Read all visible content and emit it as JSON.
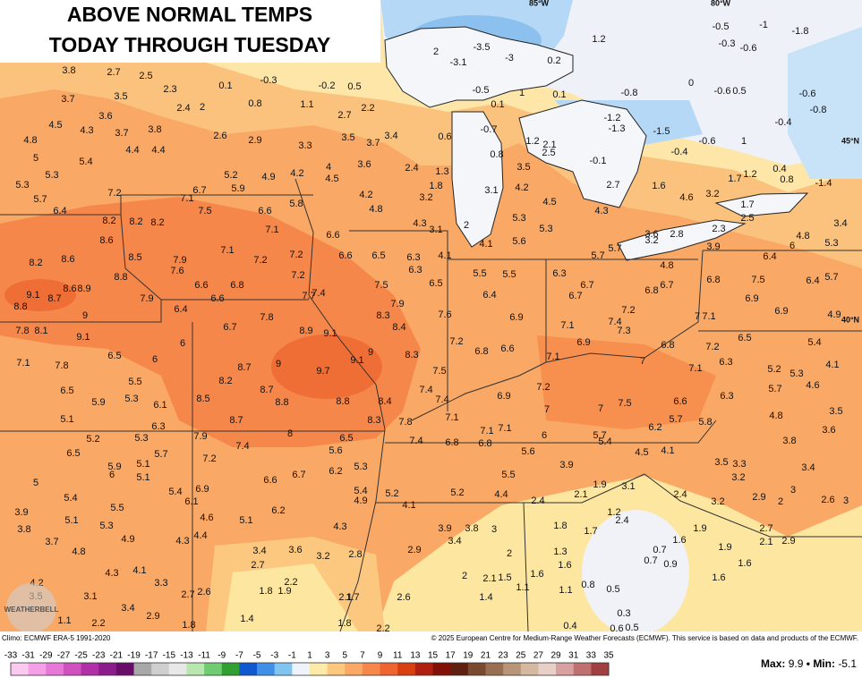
{
  "title": {
    "line1": "ABOVE NORMAL TEMPS",
    "line2": "TODAY THROUGH TUESDAY"
  },
  "graticule": {
    "lon1": "85°W",
    "lon2": "80°W",
    "lat1": "45°N",
    "lat2": "40°N"
  },
  "logo": "WEATHERBELL",
  "anomalies": [
    3.8,
    2.7,
    2.5,
    2.3,
    0.1,
    -0.3,
    -0.2,
    0.5,
    3.7,
    3.5,
    2.4,
    2.0,
    0.8,
    1.1,
    2.7,
    2.2,
    4.5,
    3.6,
    4.3,
    3.7,
    3.8,
    2.6,
    2.9,
    3.3,
    3.5,
    3.7,
    3.4,
    4.8,
    5.0,
    5.4,
    4.4,
    4.4,
    5.3,
    5.2,
    4.9,
    4.2,
    4.0,
    4.5,
    3.6,
    2.4,
    1.3,
    1.8,
    3.2,
    5.3,
    5.7,
    7.2,
    6.7,
    5.9,
    7.1,
    4.2,
    5.8,
    6.4,
    7.5,
    6.6,
    4.8,
    8.2,
    8.2,
    8.2,
    7.1,
    4.3,
    3.1,
    2.0,
    6.6,
    8.6,
    4.1,
    7.1,
    7.2,
    7.2,
    6.6,
    6.5,
    6.3,
    8.2,
    8.6,
    8.5,
    7.9,
    4.1,
    7.6,
    6.3,
    8.8,
    5.5,
    5.5,
    7.2,
    6.6,
    6.8,
    7.5,
    6.5,
    9.1,
    8.7,
    8.6,
    8.9,
    7.7,
    7.4,
    6.4,
    6.6,
    7.9,
    8.8,
    6.4,
    7.9,
    8.3,
    7.6,
    6.9,
    9.0,
    7.8,
    8.4,
    8.9,
    9.1,
    7.8,
    8.1,
    6.7,
    9.1,
    7.2,
    6.0,
    6.8,
    6.6,
    9.0,
    8.3,
    6.5,
    7.1,
    7.8,
    6.0,
    8.7,
    9.0,
    9.7,
    9.1,
    7.5,
    5.5,
    8.2,
    8.7,
    7.4,
    7.4,
    6.9,
    6.5,
    5.9,
    5.3,
    6.1,
    8.5,
    8.8,
    8.8,
    8.4,
    5.1,
    6.3,
    8.7,
    8.3,
    7.8,
    7.1,
    7.1,
    7.1,
    5.2,
    5.3,
    7.9,
    8.0,
    6.5,
    7.4,
    6.8,
    6.8,
    6.0,
    7.4,
    6.5,
    5.7,
    5.6,
    5.6,
    7.2,
    5.9,
    5.1,
    6.0,
    5.1,
    5.3,
    6.2,
    6.6,
    6.7,
    5.5,
    3.9,
    5.0,
    6.9,
    5.4,
    6.1,
    5.4,
    4.9,
    5.2,
    5.2,
    4.4,
    2.4,
    2.1,
    5.4,
    5.5,
    4.1,
    6.2,
    4.6,
    5.1,
    3.9,
    5.1,
    5.3,
    3.9,
    3.8,
    3.0,
    3.8,
    4.3,
    1.8,
    1.7,
    2.0,
    1.3,
    3.4,
    3.7,
    4.8,
    4.9,
    4.3,
    4.4,
    3.4,
    3.6,
    3.2,
    2.8,
    2.9,
    2.7,
    1.6,
    1.6,
    4.3,
    4.1,
    3.3,
    2.0,
    2.1,
    1.5,
    2.2,
    1.8,
    1.9,
    2.7,
    2.6,
    2.1,
    1.7,
    2.6,
    1.1,
    1.1,
    0.8,
    0.5,
    1.4,
    4.2,
    3.5,
    3.1,
    3.4,
    1.4,
    1.8,
    2.2,
    2.9,
    1.1,
    2.2,
    1.8,
    0.4,
    0.3,
    0.6,
    0.5,
    1.2,
    2.0,
    -3.5,
    -3.1,
    -3.0,
    0.2,
    -1.0,
    -0.5,
    -1.8,
    -0.3,
    -0.6,
    0.0,
    -0.6,
    0.5,
    -0.8,
    1.0,
    0.1,
    -0.5,
    0.1,
    -0.6,
    -0.8,
    -0.4,
    -1.2,
    -1.3,
    -1.5,
    -0.7,
    0.6,
    1.2,
    2.1,
    2.5,
    -0.6,
    1.0,
    -0.4,
    0.8,
    -0.1,
    3.5,
    0.4,
    0.8,
    1.2,
    1.7,
    -1.4,
    3.1,
    4.2,
    4.5,
    2.7,
    1.6,
    4.6,
    3.2,
    4.3,
    5.3,
    5.3,
    5.6,
    1.7,
    2.5,
    3.4,
    3.6,
    3.2,
    2.8,
    2.3,
    4.8,
    5.3,
    6.0,
    3.9,
    5.7,
    5.7,
    4.8,
    6.4,
    6.3,
    6.7,
    6.8,
    7.5,
    6.4,
    5.7,
    6.7,
    6.8,
    6.7,
    6.9,
    7.2,
    7.1,
    7.4,
    7.3,
    7.0,
    7.1,
    6.9,
    4.9,
    6.9,
    6.8,
    7.2,
    6.5,
    5.4,
    7.1,
    7.0,
    7.1,
    6.3,
    5.2,
    5.3,
    4.1,
    4.6,
    7.2,
    5.7,
    6.3,
    6.6,
    7.0,
    7.0,
    7.5,
    5.7,
    5.8,
    4.8,
    3.5,
    6.2,
    3.6,
    5.7,
    5.4,
    3.8,
    4.5,
    4.1,
    3.5,
    3.3,
    3.4,
    3.2,
    3.0,
    1.9,
    3.1,
    2.4,
    3.2,
    2.9,
    2.0,
    2.6,
    3.0,
    1.2,
    2.4,
    1.9,
    2.7,
    2.1,
    2.9,
    1.6,
    1.9,
    0.7,
    0.7,
    0.9,
    1.6,
    1.6
  ],
  "footer": {
    "climo": "Climo: ECMWF ERA-5 1991-2020",
    "copyright": "© 2025 European Centre for Medium-Range Weather Forecasts (ECMWF). This service is based on data and products of the ECMWF.",
    "max_label": "Max:",
    "max": 9.9,
    "separator": "•",
    "min_label": "Min:",
    "min": -5.1
  },
  "legend": {
    "ticks": [
      -33,
      -31,
      -29,
      -27,
      -25,
      -23,
      -21,
      -19,
      -17,
      -15,
      -13,
      -11,
      -9,
      -7,
      -5,
      -3,
      -1,
      1,
      3,
      5,
      7,
      9,
      11,
      13,
      15,
      17,
      19,
      21,
      23,
      25,
      27,
      29,
      31,
      33,
      35
    ],
    "colors": [
      "#fbc8ef",
      "#f5a0e6",
      "#e878d8",
      "#d050c0",
      "#b030a8",
      "#8c1c8c",
      "#6a0c6a",
      "#a8a8a8",
      "#cfcfcf",
      "#e8e8e8",
      "#b8e8b0",
      "#70cc70",
      "#30a030",
      "#1058d0",
      "#4090e8",
      "#80c4f2",
      "#eef2fa",
      "#fdeaa8",
      "#fcc77e",
      "#f9a865",
      "#f5874a",
      "#ee6530",
      "#d84010",
      "#b02010",
      "#801008",
      "#602010",
      "#7a4a30",
      "#9a6e50",
      "#b89478",
      "#d4b8a0",
      "#e8d0c8",
      "#d8a0a0",
      "#c07070",
      "#a04040"
    ]
  }
}
